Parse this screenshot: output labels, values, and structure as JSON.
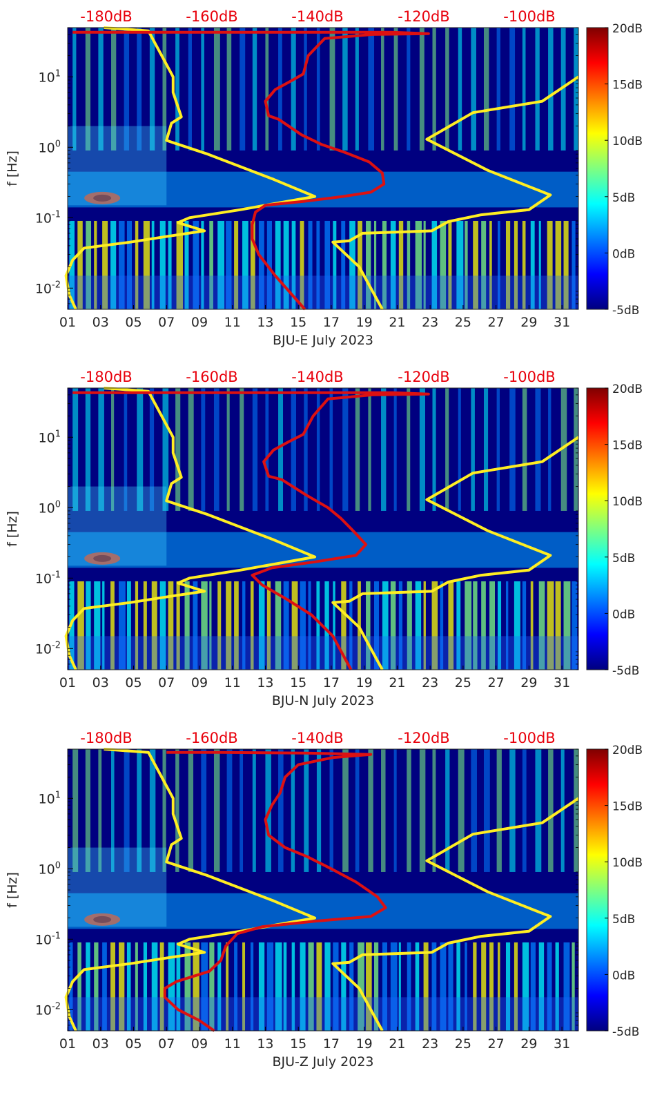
{
  "colors": {
    "background": "#000080",
    "model_line": "#ffee22",
    "noise_line": "#dd1111",
    "db_label": "#e8000b",
    "colormap": [
      "#00007f",
      "#0000ff",
      "#007fff",
      "#00ffff",
      "#7fff7f",
      "#ffff00",
      "#ff7f00",
      "#ff0000",
      "#7f0000"
    ]
  },
  "chart_data": [
    {
      "type": "heatmap",
      "component": "BJU-E",
      "xlabel": "BJU-E July 2023",
      "ylabel": "f [Hz]",
      "x_ticks": [
        "01",
        "03",
        "05",
        "07",
        "09",
        "11",
        "13",
        "15",
        "17",
        "19",
        "21",
        "23",
        "25",
        "27",
        "29",
        "31"
      ],
      "xlim": [
        1,
        32
      ],
      "y_scale": "log",
      "ylim": [
        0.005,
        50
      ],
      "y_ticks": [
        {
          "value": 0.01,
          "base": "10",
          "exp": "-2"
        },
        {
          "value": 0.1,
          "base": "10",
          "exp": "-1"
        },
        {
          "value": 1,
          "base": "10",
          "exp": "0"
        },
        {
          "value": 10,
          "base": "10",
          "exp": "1"
        }
      ],
      "top_axis_labels": [
        "-180dB",
        "-160dB",
        "-140dB",
        "-120dB",
        "-100dB"
      ],
      "colorbar": {
        "labels": [
          "20dB",
          "15dB",
          "10dB",
          "5dB",
          "0dB",
          "-5dB"
        ],
        "range": [
          -5,
          20
        ]
      },
      "series": [
        {
          "values": [
            [
              3.2,
              50
            ],
            [
              5.9,
              45
            ],
            [
              7.4,
              10
            ],
            [
              7.4,
              6.0
            ],
            [
              7.9,
              2.7
            ],
            [
              7.3,
              2.2
            ],
            [
              7.0,
              1.25
            ],
            [
              9.5,
              0.8
            ],
            [
              13.5,
              0.35
            ],
            [
              16.0,
              0.2
            ],
            [
              11.5,
              0.13
            ],
            [
              8.4,
              0.1
            ],
            [
              7.7,
              0.085
            ],
            [
              9.3,
              0.065
            ],
            [
              7.2,
              0.055
            ],
            [
              4.8,
              0.045
            ],
            [
              2.0,
              0.037
            ],
            [
              1.3,
              0.025
            ],
            [
              0.9,
              0.015
            ],
            [
              1.1,
              0.008
            ],
            [
              1.5,
              0.005
            ]
          ]
        },
        {
          "values": [
            [
              32.0,
              10
            ],
            [
              29.8,
              4.5
            ],
            [
              25.6,
              3.1
            ],
            [
              22.8,
              1.3
            ],
            [
              26.5,
              0.47
            ],
            [
              30.3,
              0.21
            ],
            [
              29.0,
              0.13
            ],
            [
              26.1,
              0.11
            ],
            [
              24.1,
              0.088
            ],
            [
              23.1,
              0.065
            ],
            [
              18.9,
              0.06
            ],
            [
              18.1,
              0.047
            ],
            [
              17.1,
              0.045
            ],
            [
              18.7,
              0.02
            ],
            [
              20.1,
              0.005
            ]
          ]
        },
        {
          "values": [
            [
              1.3,
              43
            ],
            [
              5.2,
              43
            ],
            [
              10.3,
              43
            ],
            [
              15.5,
              43
            ],
            [
              20.7,
              43
            ],
            [
              22.9,
              41
            ],
            [
              19.5,
              40
            ],
            [
              16.6,
              35
            ],
            [
              15.6,
              20
            ],
            [
              15.3,
              11
            ],
            [
              14.5,
              8.6
            ],
            [
              13.6,
              6.6
            ],
            [
              13.0,
              4.5
            ],
            [
              13.2,
              2.8
            ],
            [
              13.8,
              2.5
            ],
            [
              15.2,
              1.5
            ],
            [
              16.4,
              1.1
            ],
            [
              17.8,
              0.85
            ],
            [
              19.3,
              0.62
            ],
            [
              20.1,
              0.43
            ],
            [
              20.2,
              0.3
            ],
            [
              19.4,
              0.23
            ],
            [
              17.7,
              0.2
            ],
            [
              15.3,
              0.17
            ],
            [
              13.0,
              0.15
            ],
            [
              12.4,
              0.12
            ],
            [
              12.2,
              0.08
            ],
            [
              12.2,
              0.05
            ],
            [
              12.6,
              0.03
            ],
            [
              13.6,
              0.015
            ],
            [
              15.4,
              0.005
            ]
          ]
        }
      ]
    },
    {
      "type": "heatmap",
      "component": "BJU-N",
      "xlabel": "BJU-N July 2023",
      "ylabel": "f [Hz]",
      "x_ticks": [
        "01",
        "03",
        "05",
        "07",
        "09",
        "11",
        "13",
        "15",
        "17",
        "19",
        "21",
        "23",
        "25",
        "27",
        "29",
        "31"
      ],
      "xlim": [
        1,
        32
      ],
      "y_scale": "log",
      "ylim": [
        0.005,
        50
      ],
      "y_ticks": [
        {
          "value": 0.01,
          "base": "10",
          "exp": "-2"
        },
        {
          "value": 0.1,
          "base": "10",
          "exp": "-1"
        },
        {
          "value": 1,
          "base": "10",
          "exp": "0"
        },
        {
          "value": 10,
          "base": "10",
          "exp": "1"
        }
      ],
      "top_axis_labels": [
        "-180dB",
        "-160dB",
        "-140dB",
        "-120dB",
        "-100dB"
      ],
      "colorbar": {
        "labels": [
          "20dB",
          "15dB",
          "10dB",
          "5dB",
          "0dB",
          "-5dB"
        ],
        "range": [
          -5,
          20
        ]
      },
      "series": [
        {
          "values": [
            [
              3.2,
              50
            ],
            [
              5.9,
              45
            ],
            [
              7.4,
              10
            ],
            [
              7.4,
              6.0
            ],
            [
              7.9,
              2.7
            ],
            [
              7.3,
              2.2
            ],
            [
              7.0,
              1.25
            ],
            [
              9.5,
              0.8
            ],
            [
              13.5,
              0.35
            ],
            [
              16.0,
              0.2
            ],
            [
              11.5,
              0.13
            ],
            [
              8.4,
              0.1
            ],
            [
              7.7,
              0.085
            ],
            [
              9.3,
              0.065
            ],
            [
              7.2,
              0.055
            ],
            [
              4.8,
              0.045
            ],
            [
              2.0,
              0.037
            ],
            [
              1.3,
              0.025
            ],
            [
              0.9,
              0.015
            ],
            [
              1.1,
              0.008
            ],
            [
              1.5,
              0.005
            ]
          ]
        },
        {
          "values": [
            [
              32.0,
              10
            ],
            [
              29.8,
              4.5
            ],
            [
              25.6,
              3.1
            ],
            [
              22.8,
              1.3
            ],
            [
              26.5,
              0.47
            ],
            [
              30.3,
              0.21
            ],
            [
              29.0,
              0.13
            ],
            [
              26.1,
              0.11
            ],
            [
              24.1,
              0.088
            ],
            [
              23.1,
              0.065
            ],
            [
              18.9,
              0.06
            ],
            [
              18.1,
              0.047
            ],
            [
              17.1,
              0.045
            ],
            [
              18.7,
              0.02
            ],
            [
              20.1,
              0.005
            ]
          ]
        },
        {
          "values": [
            [
              1.3,
              43
            ],
            [
              5.2,
              43
            ],
            [
              10.3,
              43
            ],
            [
              15.5,
              43
            ],
            [
              20.7,
              43
            ],
            [
              22.9,
              41
            ],
            [
              19.5,
              40
            ],
            [
              16.8,
              35
            ],
            [
              15.9,
              20
            ],
            [
              15.3,
              11
            ],
            [
              14.4,
              8.6
            ],
            [
              13.5,
              6.6
            ],
            [
              12.9,
              4.5
            ],
            [
              13.2,
              2.8
            ],
            [
              14.0,
              2.5
            ],
            [
              15.5,
              1.5
            ],
            [
              16.8,
              1.0
            ],
            [
              17.6,
              0.7
            ],
            [
              18.4,
              0.45
            ],
            [
              19.1,
              0.3
            ],
            [
              18.5,
              0.21
            ],
            [
              16.0,
              0.17
            ],
            [
              13.4,
              0.14
            ],
            [
              12.2,
              0.11
            ],
            [
              12.8,
              0.08
            ],
            [
              14.3,
              0.05
            ],
            [
              15.8,
              0.03
            ],
            [
              17.1,
              0.015
            ],
            [
              18.2,
              0.005
            ]
          ]
        }
      ]
    },
    {
      "type": "heatmap",
      "component": "BJU-Z",
      "xlabel": "BJU-Z July 2023",
      "ylabel": "f [Hz]",
      "x_ticks": [
        "01",
        "03",
        "05",
        "07",
        "09",
        "11",
        "13",
        "15",
        "17",
        "19",
        "21",
        "23",
        "25",
        "27",
        "29",
        "31"
      ],
      "xlim": [
        1,
        32
      ],
      "y_scale": "log",
      "ylim": [
        0.005,
        50
      ],
      "y_ticks": [
        {
          "value": 0.01,
          "base": "10",
          "exp": "-2"
        },
        {
          "value": 0.1,
          "base": "10",
          "exp": "-1"
        },
        {
          "value": 1,
          "base": "10",
          "exp": "0"
        },
        {
          "value": 10,
          "base": "10",
          "exp": "1"
        }
      ],
      "top_axis_labels": [
        "-180dB",
        "-160dB",
        "-140dB",
        "-120dB",
        "-100dB"
      ],
      "colorbar": {
        "labels": [
          "20dB",
          "15dB",
          "10dB",
          "5dB",
          "0dB",
          "-5dB"
        ],
        "range": [
          -5,
          20
        ]
      },
      "series": [
        {
          "values": [
            [
              3.2,
              50
            ],
            [
              5.9,
              45
            ],
            [
              7.4,
              10
            ],
            [
              7.4,
              6.0
            ],
            [
              7.9,
              2.7
            ],
            [
              7.3,
              2.2
            ],
            [
              7.0,
              1.25
            ],
            [
              9.5,
              0.8
            ],
            [
              13.5,
              0.35
            ],
            [
              16.0,
              0.2
            ],
            [
              11.5,
              0.13
            ],
            [
              8.4,
              0.1
            ],
            [
              7.7,
              0.085
            ],
            [
              9.3,
              0.065
            ],
            [
              7.2,
              0.055
            ],
            [
              4.8,
              0.045
            ],
            [
              2.0,
              0.037
            ],
            [
              1.3,
              0.025
            ],
            [
              0.9,
              0.015
            ],
            [
              1.1,
              0.008
            ],
            [
              1.5,
              0.005
            ]
          ]
        },
        {
          "values": [
            [
              32.0,
              10
            ],
            [
              29.8,
              4.5
            ],
            [
              25.6,
              3.1
            ],
            [
              22.8,
              1.3
            ],
            [
              26.5,
              0.47
            ],
            [
              30.3,
              0.21
            ],
            [
              29.0,
              0.13
            ],
            [
              26.1,
              0.11
            ],
            [
              24.1,
              0.088
            ],
            [
              23.1,
              0.065
            ],
            [
              18.9,
              0.06
            ],
            [
              18.1,
              0.047
            ],
            [
              17.1,
              0.045
            ],
            [
              18.7,
              0.02
            ],
            [
              20.1,
              0.005
            ]
          ]
        },
        {
          "values": [
            [
              7.0,
              45
            ],
            [
              10.3,
              45
            ],
            [
              15.5,
              44
            ],
            [
              19.4,
              42
            ],
            [
              17.1,
              38
            ],
            [
              15.0,
              30
            ],
            [
              14.2,
              20
            ],
            [
              13.9,
              12
            ],
            [
              13.4,
              8.0
            ],
            [
              13.0,
              5.0
            ],
            [
              13.2,
              3.0
            ],
            [
              14.2,
              2.0
            ],
            [
              15.5,
              1.5
            ],
            [
              17.0,
              1.0
            ],
            [
              18.5,
              0.65
            ],
            [
              19.8,
              0.4
            ],
            [
              20.3,
              0.28
            ],
            [
              19.4,
              0.21
            ],
            [
              16.0,
              0.18
            ],
            [
              12.8,
              0.15
            ],
            [
              11.3,
              0.12
            ],
            [
              10.6,
              0.08
            ],
            [
              10.3,
              0.05
            ],
            [
              9.6,
              0.035
            ],
            [
              7.6,
              0.025
            ],
            [
              6.9,
              0.02
            ],
            [
              6.9,
              0.015
            ],
            [
              7.7,
              0.01
            ],
            [
              9.0,
              0.007
            ],
            [
              9.9,
              0.005
            ]
          ]
        }
      ]
    }
  ]
}
